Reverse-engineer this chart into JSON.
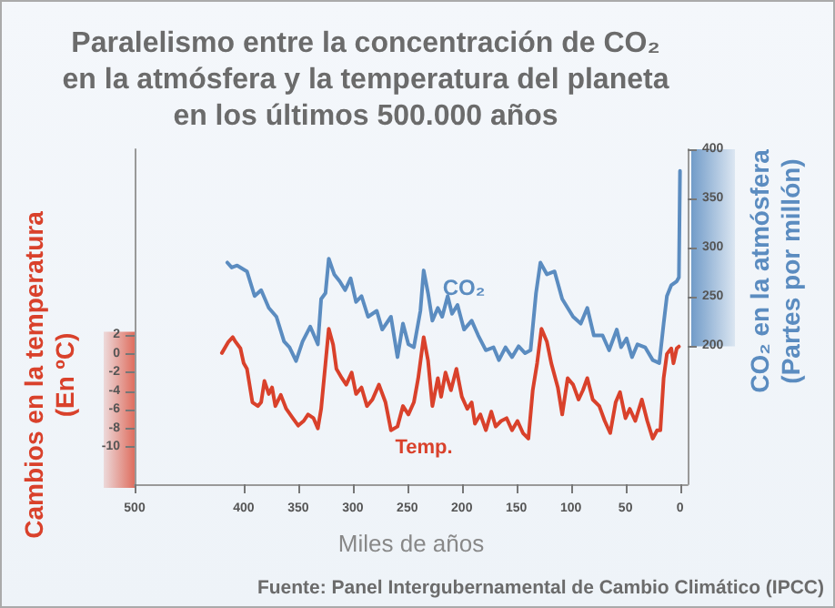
{
  "chart_data": {
    "type": "line",
    "title": "Paralelismo entre la concentración de CO₂\nen la atmósfera y la temperatura del planeta\nen los últimos 500.000 años",
    "xlabel": "Miles de años",
    "ylabel": "Cambios en la temperatura\n(En ºC)",
    "y2label": "CO₂ en la atmósfera\n(Partes por millón)",
    "annotations": [
      "Fuente: Panel Intergubernamental de Cambio Climático (IPCC)"
    ],
    "xlim": [
      500,
      -7
    ],
    "xticks": [
      500,
      400,
      350,
      300,
      250,
      200,
      150,
      100,
      50,
      0
    ],
    "ylim": [
      -14,
      22
    ],
    "yticks": [
      2,
      0,
      -2,
      -4,
      -6,
      -8,
      -10
    ],
    "y2lim": [
      60,
      400
    ],
    "y2ticks": [
      200,
      250,
      300,
      350,
      400
    ],
    "series": [
      {
        "name": "CO₂",
        "color": "#5b8cc0",
        "axis": "y2",
        "x": [
          415,
          411,
          406,
          397,
          390,
          384,
          377,
          370,
          363,
          358,
          352,
          346,
          339,
          332,
          329,
          325,
          322,
          317,
          312,
          307,
          302,
          297,
          292,
          286,
          278,
          273,
          265,
          259,
          254,
          249,
          244,
          238,
          235,
          231,
          227,
          222,
          218,
          213,
          209,
          204,
          198,
          191,
          185,
          178,
          171,
          166,
          160,
          154,
          148,
          142,
          137,
          132,
          128,
          122,
          115,
          108,
          98,
          91,
          85,
          79,
          71,
          65,
          58,
          54,
          49,
          44,
          39,
          32,
          25,
          19,
          15,
          12,
          8,
          3,
          1,
          0
        ],
        "values": [
          285,
          280,
          282,
          276,
          251,
          257,
          239,
          230,
          205,
          199,
          185,
          205,
          220,
          202,
          248,
          254,
          289,
          273,
          266,
          257,
          269,
          245,
          251,
          230,
          236,
          217,
          230,
          189,
          223,
          202,
          199,
          236,
          277,
          254,
          226,
          239,
          230,
          251,
          233,
          242,
          217,
          226,
          211,
          196,
          199,
          186,
          199,
          189,
          200,
          193,
          196,
          254,
          285,
          273,
          276,
          248,
          230,
          223,
          239,
          211,
          211,
          196,
          217,
          199,
          208,
          189,
          202,
          199,
          186,
          183,
          223,
          251,
          262,
          266,
          270,
          378
        ]
      },
      {
        "name": "Temp.",
        "color": "#d9412b",
        "x": [
          420,
          414,
          410,
          408,
          403,
          400,
          397,
          392,
          387,
          384,
          381,
          377,
          374,
          371,
          366,
          361,
          355,
          350,
          345,
          341,
          336,
          332,
          329,
          325,
          322,
          318,
          315,
          310,
          306,
          301,
          297,
          292,
          287,
          282,
          276,
          270,
          265,
          259,
          254,
          249,
          244,
          240,
          235,
          231,
          227,
          222,
          219,
          215,
          210,
          205,
          200,
          195,
          191,
          188,
          183,
          178,
          173,
          169,
          164,
          159,
          154,
          149,
          144,
          139,
          135,
          131,
          127,
          122,
          118,
          112,
          108,
          103,
          98,
          93,
          89,
          85,
          80,
          74,
          69,
          64,
          59,
          55,
          50,
          46,
          41,
          35,
          30,
          25,
          21,
          18,
          15,
          12,
          8,
          6,
          3,
          1
        ],
        "values": [
          0.1,
          1.3,
          1.8,
          1.4,
          0.6,
          -1,
          -1.6,
          -5.2,
          -5.6,
          -5.2,
          -2.9,
          -4.3,
          -3.6,
          -5.6,
          -4.4,
          -5.9,
          -6.9,
          -7.7,
          -7.2,
          -6.5,
          -6.9,
          -8,
          -5.9,
          -1,
          2.7,
          1,
          -1.6,
          -2.6,
          -3.3,
          -2,
          -4.3,
          -3.6,
          -5.6,
          -4.9,
          -3.3,
          -5.2,
          -8.2,
          -7.8,
          -5.6,
          -6.5,
          -5.2,
          -2.6,
          1.8,
          -0.7,
          -5.6,
          -2.6,
          -4.6,
          -2,
          -3.9,
          -1.6,
          -4.6,
          -5.9,
          -5.2,
          -7.5,
          -6.5,
          -8.2,
          -6.2,
          -7.8,
          -7.2,
          -6.9,
          -8.2,
          -7.2,
          -8.5,
          -9.1,
          -3.9,
          -1,
          2.7,
          1.3,
          -1,
          -3.6,
          -6.5,
          -2.6,
          -3.3,
          -4.9,
          -3.9,
          -2.6,
          -4.9,
          -5.6,
          -7.2,
          -8.5,
          -5.2,
          -4.1,
          -6.9,
          -5.9,
          -7.2,
          -4.9,
          -7.2,
          -9.1,
          -8.2,
          -8.2,
          -2.6,
          0,
          0.6,
          -1,
          0.6,
          0.8
        ]
      }
    ]
  }
}
